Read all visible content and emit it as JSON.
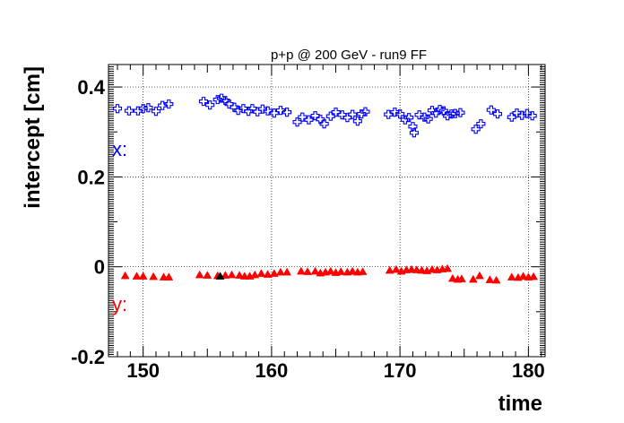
{
  "chart_data": {
    "type": "scatter",
    "title": "p+p @ 200 GeV - run9 FF",
    "xlabel": "time",
    "ylabel": "intercept [cm]",
    "xlim": [
      147.3,
      181.3
    ],
    "ylim": [
      -0.2,
      0.45
    ],
    "xticks": [
      150,
      160,
      170,
      180
    ],
    "xtick_labels": [
      "150",
      "160",
      "170",
      "180"
    ],
    "yticks": [
      -0.2,
      0,
      0.2,
      0.4
    ],
    "ytick_labels": [
      "-0.2",
      "0",
      "0.2",
      "0.4"
    ],
    "grid": true,
    "series": [
      {
        "name": "x:",
        "color": "#0000ff",
        "marker": "open-cross",
        "points": [
          [
            148.0,
            0.352
          ],
          [
            148.9,
            0.347
          ],
          [
            149.6,
            0.347
          ],
          [
            150.0,
            0.352
          ],
          [
            150.4,
            0.354
          ],
          [
            151.0,
            0.346
          ],
          [
            151.5,
            0.359
          ],
          [
            152.0,
            0.362
          ],
          [
            154.7,
            0.368
          ],
          [
            155.2,
            0.36
          ],
          [
            155.8,
            0.372
          ],
          [
            156.1,
            0.375
          ],
          [
            156.4,
            0.37
          ],
          [
            156.7,
            0.362
          ],
          [
            157.1,
            0.355
          ],
          [
            157.4,
            0.348
          ],
          [
            157.8,
            0.352
          ],
          [
            158.2,
            0.346
          ],
          [
            158.5,
            0.352
          ],
          [
            158.9,
            0.345
          ],
          [
            159.3,
            0.351
          ],
          [
            159.7,
            0.347
          ],
          [
            160.2,
            0.342
          ],
          [
            160.7,
            0.348
          ],
          [
            161.2,
            0.344
          ],
          [
            162.0,
            0.322
          ],
          [
            162.4,
            0.333
          ],
          [
            162.9,
            0.327
          ],
          [
            163.4,
            0.336
          ],
          [
            163.8,
            0.328
          ],
          [
            164.1,
            0.318
          ],
          [
            164.6,
            0.335
          ],
          [
            165.0,
            0.344
          ],
          [
            165.5,
            0.338
          ],
          [
            165.9,
            0.332
          ],
          [
            166.3,
            0.339
          ],
          [
            166.7,
            0.324
          ],
          [
            167.0,
            0.34
          ],
          [
            167.3,
            0.345
          ],
          [
            169.1,
            0.339
          ],
          [
            169.6,
            0.344
          ],
          [
            170.0,
            0.34
          ],
          [
            170.4,
            0.327
          ],
          [
            170.7,
            0.332
          ],
          [
            171.0,
            0.312
          ],
          [
            171.1,
            0.298
          ],
          [
            171.5,
            0.338
          ],
          [
            171.9,
            0.333
          ],
          [
            172.2,
            0.329
          ],
          [
            172.5,
            0.348
          ],
          [
            172.8,
            0.342
          ],
          [
            173.1,
            0.35
          ],
          [
            173.4,
            0.347
          ],
          [
            173.7,
            0.336
          ],
          [
            174.0,
            0.34
          ],
          [
            174.3,
            0.341
          ],
          [
            174.7,
            0.343
          ],
          [
            175.9,
            0.306
          ],
          [
            176.3,
            0.318
          ],
          [
            177.1,
            0.349
          ],
          [
            177.6,
            0.34
          ],
          [
            178.7,
            0.333
          ],
          [
            179.1,
            0.342
          ],
          [
            179.5,
            0.337
          ],
          [
            179.9,
            0.341
          ],
          [
            180.3,
            0.336
          ]
        ]
      },
      {
        "name": "y:",
        "color": "#ff0000",
        "marker": "filled-triangle",
        "points": [
          [
            148.6,
            -0.02
          ],
          [
            149.5,
            -0.021
          ],
          [
            150.0,
            -0.021
          ],
          [
            150.8,
            -0.022
          ],
          [
            151.6,
            -0.023
          ],
          [
            152.0,
            -0.023
          ],
          [
            154.4,
            -0.018
          ],
          [
            155.0,
            -0.019
          ],
          [
            155.8,
            -0.02
          ],
          [
            156.4,
            -0.019
          ],
          [
            156.9,
            -0.018
          ],
          [
            157.5,
            -0.019
          ],
          [
            157.9,
            -0.021
          ],
          [
            158.3,
            -0.021
          ],
          [
            158.7,
            -0.018
          ],
          [
            159.2,
            -0.015
          ],
          [
            159.7,
            -0.017
          ],
          [
            160.2,
            -0.015
          ],
          [
            160.7,
            -0.012
          ],
          [
            161.2,
            -0.012
          ],
          [
            162.3,
            -0.01
          ],
          [
            162.8,
            -0.011
          ],
          [
            163.4,
            -0.01
          ],
          [
            163.8,
            -0.014
          ],
          [
            164.2,
            -0.012
          ],
          [
            164.6,
            -0.01
          ],
          [
            165.0,
            -0.013
          ],
          [
            165.4,
            -0.011
          ],
          [
            165.9,
            -0.012
          ],
          [
            166.3,
            -0.01
          ],
          [
            166.7,
            -0.012
          ],
          [
            167.1,
            -0.011
          ],
          [
            169.2,
            -0.008
          ],
          [
            169.7,
            -0.006
          ],
          [
            170.1,
            -0.01
          ],
          [
            170.5,
            -0.007
          ],
          [
            170.9,
            -0.006
          ],
          [
            171.3,
            -0.007
          ],
          [
            171.7,
            -0.008
          ],
          [
            172.1,
            -0.009
          ],
          [
            172.5,
            -0.006
          ],
          [
            172.9,
            -0.007
          ],
          [
            173.3,
            -0.005
          ],
          [
            173.7,
            -0.004
          ],
          [
            174.1,
            -0.026
          ],
          [
            174.5,
            -0.028
          ],
          [
            174.8,
            -0.027
          ],
          [
            175.7,
            -0.028
          ],
          [
            176.2,
            -0.02
          ],
          [
            177.0,
            -0.029
          ],
          [
            177.5,
            -0.03
          ],
          [
            178.7,
            -0.023
          ],
          [
            179.2,
            -0.024
          ],
          [
            179.6,
            -0.021
          ],
          [
            180.0,
            -0.023
          ],
          [
            180.4,
            -0.022
          ]
        ]
      },
      {
        "name": "",
        "color": "#000000",
        "marker": "filled-triangle",
        "points": [
          [
            156.0,
            -0.021
          ]
        ]
      }
    ]
  }
}
